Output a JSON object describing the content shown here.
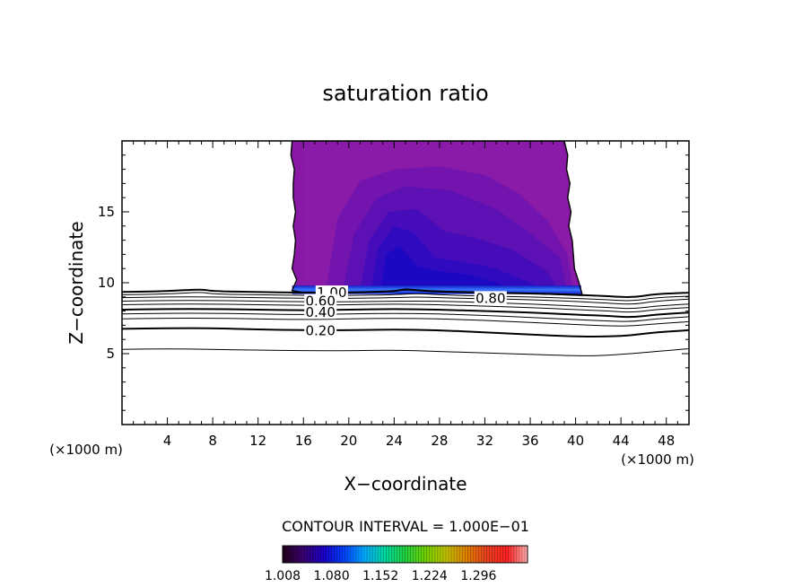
{
  "chart_data": {
    "type": "contour",
    "title": "saturation ratio",
    "xlabel": "X−coordinate",
    "ylabel": "Z−coordinate",
    "x_unit_label_left": "(×1000 m)",
    "x_unit_label_right": "(×1000 m)",
    "xlim": [
      0,
      50
    ],
    "ylim": [
      0,
      20
    ],
    "x_ticks": [
      4,
      8,
      12,
      16,
      20,
      24,
      28,
      32,
      36,
      40,
      44,
      48
    ],
    "y_ticks": [
      5,
      10,
      15
    ],
    "contour_interval_label": "CONTOUR INTERVAL = 1.000E−01",
    "contour_labels": [
      {
        "text": "1.00",
        "x": 18.5,
        "z": 9.3
      },
      {
        "text": "0.80",
        "x": 32.5,
        "z": 8.9
      },
      {
        "text": "0.60",
        "x": 17.5,
        "z": 8.7
      },
      {
        "text": "0.40",
        "x": 17.5,
        "z": 7.9
      },
      {
        "text": "0.20",
        "x": 17.5,
        "z": 6.6
      }
    ],
    "contour_lines": [
      {
        "level": "1.0",
        "bold": true,
        "points": [
          [
            0,
            9.35
          ],
          [
            4,
            9.4
          ],
          [
            7,
            9.55
          ],
          [
            8,
            9.4
          ],
          [
            12,
            9.35
          ],
          [
            16,
            9.3
          ],
          [
            20,
            9.3
          ],
          [
            24,
            9.4
          ],
          [
            25,
            9.55
          ],
          [
            27,
            9.4
          ],
          [
            32,
            9.3
          ],
          [
            36,
            9.25
          ],
          [
            40,
            9.15
          ],
          [
            43,
            9.05
          ],
          [
            45,
            8.95
          ],
          [
            47,
            9.2
          ],
          [
            50,
            9.3
          ]
        ]
      },
      {
        "level": "0.9",
        "bold": false,
        "points": [
          [
            0,
            9.15
          ],
          [
            4,
            9.2
          ],
          [
            7,
            9.35
          ],
          [
            8,
            9.2
          ],
          [
            12,
            9.15
          ],
          [
            16,
            9.1
          ],
          [
            20,
            9.1
          ],
          [
            24,
            9.15
          ],
          [
            26,
            9.25
          ],
          [
            28,
            9.15
          ],
          [
            32,
            9.05
          ],
          [
            36,
            9.0
          ],
          [
            40,
            8.9
          ],
          [
            43,
            8.8
          ],
          [
            45,
            8.7
          ],
          [
            47,
            8.95
          ],
          [
            50,
            9.05
          ]
        ]
      },
      {
        "level": "0.8",
        "bold": false,
        "points": [
          [
            0,
            8.95
          ],
          [
            4,
            9.0
          ],
          [
            8,
            9.0
          ],
          [
            12,
            8.95
          ],
          [
            16,
            8.9
          ],
          [
            20,
            8.9
          ],
          [
            24,
            8.95
          ],
          [
            26,
            9.0
          ],
          [
            28,
            8.95
          ],
          [
            30,
            8.9
          ],
          [
            34,
            8.85
          ],
          [
            38,
            8.75
          ],
          [
            42,
            8.6
          ],
          [
            45,
            8.45
          ],
          [
            47,
            8.7
          ],
          [
            50,
            8.85
          ]
        ]
      },
      {
        "level": "0.7",
        "bold": false,
        "points": [
          [
            0,
            8.7
          ],
          [
            4,
            8.75
          ],
          [
            8,
            8.75
          ],
          [
            12,
            8.7
          ],
          [
            16,
            8.65
          ],
          [
            20,
            8.65
          ],
          [
            24,
            8.7
          ],
          [
            28,
            8.7
          ],
          [
            32,
            8.6
          ],
          [
            36,
            8.5
          ],
          [
            40,
            8.35
          ],
          [
            43,
            8.25
          ],
          [
            45,
            8.15
          ],
          [
            47,
            8.35
          ],
          [
            50,
            8.5
          ]
        ]
      },
      {
        "level": "0.6",
        "bold": false,
        "points": [
          [
            0,
            8.45
          ],
          [
            4,
            8.5
          ],
          [
            8,
            8.5
          ],
          [
            12,
            8.45
          ],
          [
            16,
            8.4
          ],
          [
            20,
            8.45
          ],
          [
            24,
            8.5
          ],
          [
            28,
            8.45
          ],
          [
            32,
            8.35
          ],
          [
            36,
            8.25
          ],
          [
            40,
            8.1
          ],
          [
            43,
            8.0
          ],
          [
            45,
            7.9
          ],
          [
            47,
            8.1
          ],
          [
            50,
            8.25
          ]
        ]
      },
      {
        "level": "0.5",
        "bold": true,
        "points": [
          [
            0,
            8.1
          ],
          [
            4,
            8.15
          ],
          [
            8,
            8.15
          ],
          [
            12,
            8.1
          ],
          [
            16,
            8.05
          ],
          [
            20,
            8.1
          ],
          [
            24,
            8.15
          ],
          [
            28,
            8.1
          ],
          [
            32,
            8.0
          ],
          [
            36,
            7.9
          ],
          [
            40,
            7.75
          ],
          [
            43,
            7.65
          ],
          [
            45,
            7.55
          ],
          [
            47,
            7.75
          ],
          [
            50,
            7.9
          ]
        ]
      },
      {
        "level": "0.4",
        "bold": false,
        "points": [
          [
            0,
            7.8
          ],
          [
            4,
            7.85
          ],
          [
            8,
            7.85
          ],
          [
            12,
            7.8
          ],
          [
            16,
            7.75
          ],
          [
            20,
            7.8
          ],
          [
            24,
            7.85
          ],
          [
            28,
            7.8
          ],
          [
            32,
            7.7
          ],
          [
            36,
            7.55
          ],
          [
            40,
            7.4
          ],
          [
            43,
            7.3
          ],
          [
            45,
            7.25
          ],
          [
            47,
            7.45
          ],
          [
            50,
            7.6
          ]
        ]
      },
      {
        "level": "0.3",
        "bold": false,
        "points": [
          [
            0,
            7.45
          ],
          [
            4,
            7.5
          ],
          [
            8,
            7.5
          ],
          [
            12,
            7.45
          ],
          [
            16,
            7.4
          ],
          [
            20,
            7.45
          ],
          [
            24,
            7.5
          ],
          [
            28,
            7.45
          ],
          [
            32,
            7.35
          ],
          [
            36,
            7.2
          ],
          [
            40,
            7.05
          ],
          [
            43,
            6.95
          ],
          [
            45,
            6.95
          ],
          [
            47,
            7.1
          ],
          [
            50,
            7.25
          ]
        ]
      },
      {
        "level": "0.2",
        "bold": true,
        "points": [
          [
            0,
            6.75
          ],
          [
            4,
            6.8
          ],
          [
            8,
            6.8
          ],
          [
            12,
            6.7
          ],
          [
            16,
            6.65
          ],
          [
            20,
            6.65
          ],
          [
            24,
            6.7
          ],
          [
            28,
            6.65
          ],
          [
            32,
            6.5
          ],
          [
            36,
            6.35
          ],
          [
            40,
            6.2
          ],
          [
            43,
            6.2
          ],
          [
            45,
            6.3
          ],
          [
            47,
            6.5
          ],
          [
            50,
            6.65
          ]
        ]
      },
      {
        "level": "0.1",
        "bold": false,
        "points": [
          [
            0,
            5.3
          ],
          [
            4,
            5.35
          ],
          [
            8,
            5.3
          ],
          [
            12,
            5.25
          ],
          [
            16,
            5.2
          ],
          [
            20,
            5.2
          ],
          [
            24,
            5.25
          ],
          [
            28,
            5.15
          ],
          [
            32,
            5.05
          ],
          [
            36,
            4.95
          ],
          [
            40,
            4.85
          ],
          [
            42,
            4.85
          ],
          [
            45,
            5.0
          ],
          [
            47,
            5.15
          ],
          [
            50,
            5.35
          ]
        ]
      }
    ],
    "filled_region": {
      "description_levels": "supersaturated region (ratio > 1.0)",
      "outline": [
        [
          15,
          9.45
        ],
        [
          15.4,
          10.2
        ],
        [
          15.0,
          11.0
        ],
        [
          15.2,
          12.0
        ],
        [
          15.3,
          13.0
        ],
        [
          15.1,
          14.0
        ],
        [
          15.3,
          15.0
        ],
        [
          15.1,
          16.0
        ],
        [
          15.1,
          17.0
        ],
        [
          15.2,
          18.0
        ],
        [
          14.9,
          19.0
        ],
        [
          15.0,
          20.0
        ],
        [
          39.0,
          20.0
        ],
        [
          39.3,
          19.0
        ],
        [
          39.2,
          18.0
        ],
        [
          39.5,
          17.0
        ],
        [
          39.3,
          16.0
        ],
        [
          39.6,
          15.0
        ],
        [
          39.4,
          14.0
        ],
        [
          39.7,
          13.0
        ],
        [
          39.8,
          12.0
        ],
        [
          39.9,
          11.0
        ],
        [
          40.3,
          10.0
        ],
        [
          40.6,
          9.1
        ],
        [
          36,
          9.25
        ],
        [
          32,
          9.3
        ],
        [
          27,
          9.4
        ],
        [
          25,
          9.55
        ],
        [
          24,
          9.4
        ],
        [
          20,
          9.3
        ],
        [
          16,
          9.3
        ]
      ],
      "bands": [
        {
          "color": "#8a1aa8",
          "outline": [
            [
              16,
              9.6
            ],
            [
              16,
              19.9
            ],
            [
              38.8,
              19.9
            ],
            [
              39.1,
              17.0
            ],
            [
              39.5,
              13.0
            ],
            [
              40.1,
              9.4
            ]
          ]
        },
        {
          "color": "#7414ae",
          "outline": [
            [
              18,
              9.6
            ],
            [
              19,
              14.5
            ],
            [
              21,
              17.2
            ],
            [
              24,
              18.0
            ],
            [
              28,
              18.2
            ],
            [
              32,
              17.6
            ],
            [
              35,
              16.3
            ],
            [
              37.5,
              14.4
            ],
            [
              39.3,
              12.0
            ],
            [
              39.8,
              9.4
            ]
          ]
        },
        {
          "color": "#5d10b4",
          "outline": [
            [
              19.5,
              9.6
            ],
            [
              20.5,
              13.5
            ],
            [
              22.5,
              16.0
            ],
            [
              25,
              16.8
            ],
            [
              29,
              16.5
            ],
            [
              33,
              15.2
            ],
            [
              36,
              13.5
            ],
            [
              38.6,
              11.8
            ],
            [
              39.3,
              9.4
            ]
          ]
        },
        {
          "color": "#470cba",
          "outline": [
            [
              21,
              9.6
            ],
            [
              21.8,
              13.0
            ],
            [
              23.5,
              15.0
            ],
            [
              26,
              15.2
            ],
            [
              28.5,
              13.6
            ],
            [
              31,
              13.2
            ],
            [
              34.5,
              12.3
            ],
            [
              37.5,
              10.8
            ],
            [
              38.5,
              9.4
            ]
          ]
        },
        {
          "color": "#300abf",
          "outline": [
            [
              22,
              9.6
            ],
            [
              22.6,
              12.5
            ],
            [
              24,
              14.0
            ],
            [
              25.8,
              13.5
            ],
            [
              27.5,
              11.8
            ],
            [
              30,
              11.5
            ],
            [
              33,
              11.0
            ],
            [
              36,
              10.0
            ],
            [
              37.5,
              9.4
            ]
          ]
        },
        {
          "color": "#1c08c2",
          "outline": [
            [
              22.8,
              9.6
            ],
            [
              23.3,
              12.0
            ],
            [
              24.5,
              12.6
            ],
            [
              26,
              11.2
            ],
            [
              28,
              10.8
            ],
            [
              30.5,
              10.6
            ],
            [
              33,
              10.0
            ],
            [
              35,
              9.4
            ]
          ]
        }
      ],
      "edge_highlight": {
        "color": "#2e6cff",
        "x": [
          15,
          40.5
        ],
        "z": [
          9.2,
          9.8
        ]
      }
    },
    "colorbar": {
      "min": 1.008,
      "max": 1.368,
      "tick_labels": [
        "1.008",
        "1.080",
        "1.152",
        "1.224",
        "1.296"
      ],
      "colors": [
        "#200018",
        "#3a0070",
        "#1a00c8",
        "#0040ff",
        "#00a8ff",
        "#00d8a0",
        "#20d040",
        "#70d000",
        "#c0c000",
        "#e08000",
        "#e84020",
        "#ff2020",
        "#ffb0b0"
      ]
    }
  }
}
